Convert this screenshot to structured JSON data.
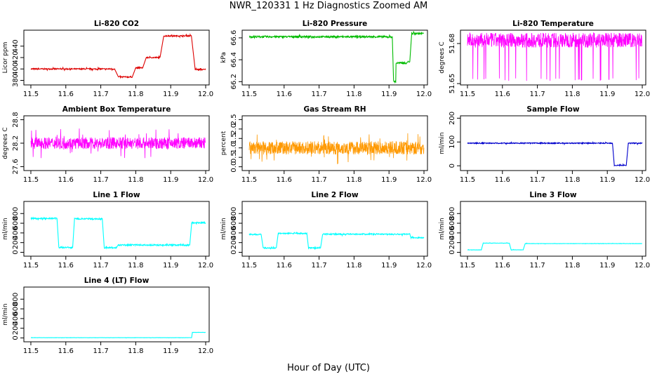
{
  "figure": {
    "title": "NWR_120331  1 Hz Diagnostics Zoomed AM",
    "xlabel": "Hour of Day (UTC)"
  },
  "chart_data": [
    {
      "type": "line",
      "title": "Li-820 CO2",
      "ylabel": "Licor ppm",
      "color": "#dd0000",
      "xlim": [
        11.48,
        12.01
      ],
      "ylim": [
        372,
        468
      ],
      "xticks": [
        11.5,
        11.6,
        11.7,
        11.8,
        11.9,
        12.0
      ],
      "yticks": [
        380,
        400,
        420,
        440
      ],
      "noise": 1,
      "dense": false,
      "segments": [
        [
          11.5,
          11.74,
          400
        ],
        [
          11.75,
          11.79,
          386
        ],
        [
          11.8,
          11.82,
          402
        ],
        [
          11.83,
          11.87,
          420
        ],
        [
          11.88,
          11.96,
          458
        ],
        [
          11.97,
          12.0,
          399
        ]
      ]
    },
    {
      "type": "line",
      "title": "Li-820 Pressure",
      "ylabel": "kPa",
      "color": "#00bb00",
      "xlim": [
        11.48,
        12.01
      ],
      "ylim": [
        66.17,
        66.67
      ],
      "xticks": [
        11.5,
        11.6,
        11.7,
        11.8,
        11.9,
        12.0
      ],
      "yticks": [
        66.2,
        66.4,
        66.6
      ],
      "noise": 0.008,
      "dense": false,
      "segments": [
        [
          11.5,
          11.91,
          66.61
        ],
        [
          11.913,
          11.92,
          66.2
        ],
        [
          11.92,
          11.95,
          66.37
        ],
        [
          11.955,
          11.96,
          66.38
        ],
        [
          11.965,
          12.0,
          66.64
        ]
      ]
    },
    {
      "type": "line",
      "title": "Li-820 Temperature",
      "ylabel": "degrees C",
      "color": "#ff00ff",
      "xlim": [
        11.48,
        12.01
      ],
      "ylim": [
        51.649,
        51.69
      ],
      "xticks": [
        11.5,
        11.6,
        11.7,
        11.8,
        11.9,
        12.0
      ],
      "yticks": [
        51.65,
        51.68
      ],
      "noise": 0,
      "dense": true,
      "band": [
        51.677,
        51.688
      ],
      "spike_low": 51.652,
      "segments": [
        [
          11.5,
          12.0,
          51.683
        ]
      ]
    },
    {
      "type": "line",
      "title": "Ambient Box Temperature",
      "ylabel": "degrees C",
      "color": "#ff00ff",
      "xlim": [
        11.48,
        12.01
      ],
      "ylim": [
        27.5,
        28.9
      ],
      "xticks": [
        11.5,
        11.6,
        11.7,
        11.8,
        11.9,
        12.0
      ],
      "yticks": [
        27.6,
        28.2,
        28.8
      ],
      "noise": 0.15,
      "dense": true,
      "segments": [
        [
          11.5,
          12.0,
          28.2
        ]
      ]
    },
    {
      "type": "line",
      "title": "Gas Stream RH",
      "ylabel": "percent",
      "color": "#ff9900",
      "xlim": [
        11.48,
        12.01
      ],
      "ylim": [
        -0.2,
        2.7
      ],
      "xticks": [
        11.5,
        11.6,
        11.7,
        11.8,
        11.9,
        12.0
      ],
      "yticks": [
        0.0,
        0.5,
        1.0,
        1.5,
        2.0,
        2.5
      ],
      "noise": 0.35,
      "dense": true,
      "segments": [
        [
          11.5,
          12.0,
          1.0
        ]
      ]
    },
    {
      "type": "line",
      "title": "Sample Flow",
      "ylabel": "ml/min",
      "color": "#0000cc",
      "xlim": [
        11.48,
        12.01
      ],
      "ylim": [
        -20,
        210
      ],
      "xticks": [
        11.5,
        11.6,
        11.7,
        11.8,
        11.9,
        12.0
      ],
      "yticks": [
        0,
        100,
        200
      ],
      "noise": 2,
      "dense": false,
      "segments": [
        [
          11.5,
          11.915,
          95
        ],
        [
          11.92,
          11.955,
          2
        ],
        [
          11.96,
          12.0,
          95
        ]
      ]
    },
    {
      "type": "line",
      "title": "Line 1 Flow",
      "ylabel": "ml/min",
      "color": "#00ffff",
      "xlim": [
        11.48,
        12.01
      ],
      "ylim": [
        -80,
        1050
      ],
      "xticks": [
        11.5,
        11.6,
        11.7,
        11.8,
        11.9,
        12.0
      ],
      "yticks": [
        0,
        200,
        400,
        600,
        800
      ],
      "noise": 14,
      "dense": false,
      "segments": [
        [
          11.5,
          11.575,
          700
        ],
        [
          11.58,
          11.62,
          100
        ],
        [
          11.625,
          11.705,
          690
        ],
        [
          11.71,
          11.745,
          95
        ],
        [
          11.75,
          11.955,
          150
        ],
        [
          11.96,
          12.0,
          610
        ]
      ]
    },
    {
      "type": "line",
      "title": "Line 2 Flow",
      "ylabel": "ml/min",
      "color": "#00ffff",
      "xlim": [
        11.48,
        12.01
      ],
      "ylim": [
        -80,
        1050
      ],
      "xticks": [
        11.5,
        11.6,
        11.7,
        11.8,
        11.9,
        12.0
      ],
      "yticks": [
        0,
        200,
        400,
        600,
        800
      ],
      "noise": 12,
      "dense": false,
      "segments": [
        [
          11.5,
          11.535,
          370
        ],
        [
          11.54,
          11.578,
          90
        ],
        [
          11.583,
          11.665,
          390
        ],
        [
          11.67,
          11.705,
          90
        ],
        [
          11.71,
          11.96,
          375
        ],
        [
          11.963,
          12.0,
          300
        ]
      ]
    },
    {
      "type": "line",
      "title": "Line 3 Flow",
      "ylabel": "ml/min",
      "color": "#00ffff",
      "xlim": [
        11.48,
        12.01
      ],
      "ylim": [
        -80,
        1050
      ],
      "xticks": [
        11.5,
        11.6,
        11.7,
        11.8,
        11.9,
        12.0
      ],
      "yticks": [
        0,
        200,
        400,
        600,
        800
      ],
      "noise": 3,
      "dense": false,
      "segments": [
        [
          11.5,
          11.54,
          50
        ],
        [
          11.545,
          11.62,
          190
        ],
        [
          11.625,
          11.66,
          50
        ],
        [
          11.665,
          12.0,
          180
        ]
      ]
    },
    {
      "type": "line",
      "title": "Line 4 (LT) Flow",
      "ylabel": "ml/min",
      "color": "#00ffff",
      "xlim": [
        11.48,
        12.01
      ],
      "ylim": [
        -80,
        1050
      ],
      "xticks": [
        11.5,
        11.6,
        11.7,
        11.8,
        11.9,
        12.0
      ],
      "yticks": [
        0,
        200,
        400,
        600,
        800
      ],
      "noise": 2,
      "dense": false,
      "segments": [
        [
          11.5,
          11.96,
          5
        ],
        [
          11.962,
          12.0,
          115
        ]
      ]
    }
  ]
}
